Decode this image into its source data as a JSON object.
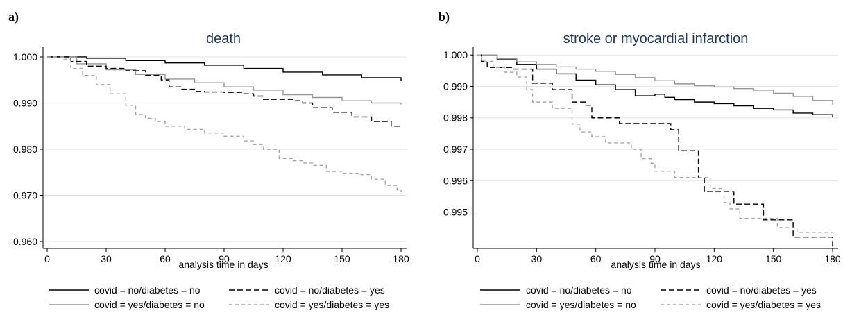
{
  "chart_data": [
    {
      "type": "line",
      "panel_label": "a)",
      "title": "death",
      "xlabel": "analysis time in days",
      "ylabel": "",
      "xlim": [
        0,
        180
      ],
      "ylim": [
        0.9585,
        1.0015
      ],
      "xticks": [
        0,
        30,
        60,
        90,
        120,
        150,
        180
      ],
      "yticks": [
        1.0,
        0.99,
        0.98,
        0.97,
        0.96
      ],
      "ytick_labels": [
        "1.000",
        "0.990",
        "0.980",
        "0.970",
        "0.960"
      ],
      "grid": true,
      "legend_position": "bottom",
      "series": [
        {
          "name": "covid = no/diabetes = no",
          "color": "#000000",
          "dash": "solid",
          "points": [
            [
              0,
              1.0
            ],
            [
              8,
              1.0
            ],
            [
              20,
              0.9997
            ],
            [
              40,
              0.9992
            ],
            [
              60,
              0.9987
            ],
            [
              80,
              0.9982
            ],
            [
              100,
              0.9975
            ],
            [
              120,
              0.9967
            ],
            [
              140,
              0.9961
            ],
            [
              160,
              0.9955
            ],
            [
              180,
              0.9948
            ]
          ]
        },
        {
          "name": "covid = yes/diabetes = no",
          "color": "#969696",
          "dash": "solid",
          "points": [
            [
              0,
              1.0
            ],
            [
              8,
              1.0
            ],
            [
              15,
              0.9985
            ],
            [
              30,
              0.9972
            ],
            [
              45,
              0.9962
            ],
            [
              60,
              0.9952
            ],
            [
              75,
              0.9944
            ],
            [
              90,
              0.9935
            ],
            [
              105,
              0.9928
            ],
            [
              120,
              0.9918
            ],
            [
              135,
              0.9912
            ],
            [
              150,
              0.9905
            ],
            [
              165,
              0.99
            ],
            [
              180,
              0.9897
            ]
          ]
        },
        {
          "name": "covid = no/diabetes = yes",
          "color": "#000000",
          "dash": "long",
          "points": [
            [
              0,
              1.0
            ],
            [
              8,
              1.0
            ],
            [
              12,
              0.999
            ],
            [
              20,
              0.998
            ],
            [
              30,
              0.9975
            ],
            [
              40,
              0.997
            ],
            [
              50,
              0.996
            ],
            [
              58,
              0.995
            ],
            [
              62,
              0.9935
            ],
            [
              68,
              0.993
            ],
            [
              75,
              0.9925
            ],
            [
              80,
              0.9924
            ],
            [
              90,
              0.9923
            ],
            [
              100,
              0.992
            ],
            [
              105,
              0.9915
            ],
            [
              110,
              0.9908
            ],
            [
              125,
              0.9905
            ],
            [
              130,
              0.99
            ],
            [
              135,
              0.989
            ],
            [
              145,
              0.988
            ],
            [
              155,
              0.987
            ],
            [
              165,
              0.986
            ],
            [
              175,
              0.985
            ],
            [
              180,
              0.9848
            ]
          ]
        },
        {
          "name": "covid = yes/diabetes = yes",
          "color": "#a6a6a6",
          "dash": "short",
          "points": [
            [
              0,
              1.0
            ],
            [
              8,
              0.9995
            ],
            [
              12,
              0.9975
            ],
            [
              18,
              0.996
            ],
            [
              25,
              0.994
            ],
            [
              32,
              0.992
            ],
            [
              40,
              0.9895
            ],
            [
              45,
              0.9875
            ],
            [
              50,
              0.9867
            ],
            [
              55,
              0.986
            ],
            [
              60,
              0.985
            ],
            [
              70,
              0.9843
            ],
            [
              80,
              0.9835
            ],
            [
              90,
              0.9828
            ],
            [
              100,
              0.9818
            ],
            [
              105,
              0.981
            ],
            [
              110,
              0.98
            ],
            [
              118,
              0.978
            ],
            [
              125,
              0.9775
            ],
            [
              130,
              0.977
            ],
            [
              135,
              0.9765
            ],
            [
              142,
              0.9752
            ],
            [
              150,
              0.9748
            ],
            [
              158,
              0.9745
            ],
            [
              165,
              0.9735
            ],
            [
              172,
              0.9722
            ],
            [
              178,
              0.9712
            ],
            [
              180,
              0.9708
            ]
          ]
        }
      ]
    },
    {
      "type": "line",
      "panel_label": "b)",
      "title": "stroke or myocardial infarction",
      "xlabel": "analysis time in days",
      "ylabel": "",
      "xlim": [
        0,
        180
      ],
      "ylim": [
        0.99384,
        1.00016
      ],
      "xticks": [
        0,
        30,
        60,
        90,
        120,
        150,
        180
      ],
      "yticks": [
        1.0,
        0.999,
        0.998,
        0.997,
        0.996,
        0.995
      ],
      "ytick_labels": [
        "1.000",
        "0.999",
        "0.998",
        "0.997",
        "0.996",
        "0.995"
      ],
      "grid": true,
      "legend_position": "bottom",
      "series": [
        {
          "name": "covid = no/diabetes = no",
          "color": "#000000",
          "dash": "solid",
          "points": [
            [
              0,
              1.0
            ],
            [
              10,
              0.99985
            ],
            [
              20,
              0.9997
            ],
            [
              30,
              0.99955
            ],
            [
              40,
              0.9994
            ],
            [
              50,
              0.9992
            ],
            [
              60,
              0.99905
            ],
            [
              70,
              0.9989
            ],
            [
              80,
              0.9987
            ],
            [
              90,
              0.99875
            ],
            [
              95,
              0.99865
            ],
            [
              100,
              0.99858
            ],
            [
              110,
              0.9985
            ],
            [
              120,
              0.99845
            ],
            [
              130,
              0.99838
            ],
            [
              140,
              0.9983
            ],
            [
              150,
              0.99825
            ],
            [
              160,
              0.99815
            ],
            [
              170,
              0.9981
            ],
            [
              180,
              0.99802
            ]
          ]
        },
        {
          "name": "covid = yes/diabetes = no",
          "color": "#969696",
          "dash": "solid",
          "points": [
            [
              0,
              1.0
            ],
            [
              10,
              0.99988
            ],
            [
              20,
              0.99978
            ],
            [
              30,
              0.9997
            ],
            [
              40,
              0.99962
            ],
            [
              50,
              0.99955
            ],
            [
              60,
              0.99948
            ],
            [
              70,
              0.99938
            ],
            [
              80,
              0.99928
            ],
            [
              90,
              0.99918
            ],
            [
              100,
              0.99908
            ],
            [
              110,
              0.99902
            ],
            [
              120,
              0.99898
            ],
            [
              130,
              0.99893
            ],
            [
              140,
              0.99888
            ],
            [
              150,
              0.99878
            ],
            [
              160,
              0.99868
            ],
            [
              170,
              0.99855
            ],
            [
              180,
              0.99842
            ]
          ]
        },
        {
          "name": "covid = no/diabetes = yes",
          "color": "#000000",
          "dash": "long",
          "points": [
            [
              0,
              1.0
            ],
            [
              2,
              0.9998
            ],
            [
              5,
              0.9996
            ],
            [
              15,
              0.9996
            ],
            [
              18,
              0.99955
            ],
            [
              25,
              0.99955
            ],
            [
              28,
              0.9991
            ],
            [
              35,
              0.9991
            ],
            [
              38,
              0.9989
            ],
            [
              45,
              0.9989
            ],
            [
              48,
              0.9985
            ],
            [
              55,
              0.9984
            ],
            [
              58,
              0.998
            ],
            [
              70,
              0.998
            ],
            [
              72,
              0.99782
            ],
            [
              95,
              0.99782
            ],
            [
              98,
              0.99762
            ],
            [
              100,
              0.99762
            ],
            [
              102,
              0.99695
            ],
            [
              110,
              0.99695
            ],
            [
              112,
              0.9961
            ],
            [
              115,
              0.99565
            ],
            [
              125,
              0.99565
            ],
            [
              130,
              0.99525
            ],
            [
              140,
              0.99525
            ],
            [
              145,
              0.99475
            ],
            [
              155,
              0.99475
            ],
            [
              160,
              0.9942
            ],
            [
              178,
              0.9942
            ],
            [
              180,
              0.99385
            ]
          ]
        },
        {
          "name": "covid = yes/diabetes = yes",
          "color": "#a6a6a6",
          "dash": "short",
          "points": [
            [
              0,
              1.0
            ],
            [
              2,
              0.9998
            ],
            [
              8,
              0.9996
            ],
            [
              14,
              0.99945
            ],
            [
              20,
              0.9993
            ],
            [
              25,
              0.9989
            ],
            [
              28,
              0.9985
            ],
            [
              32,
              0.9985
            ],
            [
              38,
              0.9983
            ],
            [
              45,
              0.9983
            ],
            [
              48,
              0.9978
            ],
            [
              52,
              0.99755
            ],
            [
              55,
              0.99755
            ],
            [
              58,
              0.9974
            ],
            [
              62,
              0.9974
            ],
            [
              65,
              0.9972
            ],
            [
              75,
              0.9972
            ],
            [
              78,
              0.997
            ],
            [
              80,
              0.997
            ],
            [
              83,
              0.9967
            ],
            [
              88,
              0.99655
            ],
            [
              90,
              0.9963
            ],
            [
              98,
              0.9963
            ],
            [
              100,
              0.9961
            ],
            [
              115,
              0.9961
            ],
            [
              118,
              0.99575
            ],
            [
              125,
              0.9953
            ],
            [
              128,
              0.9951
            ],
            [
              133,
              0.9948
            ],
            [
              148,
              0.9948
            ],
            [
              152,
              0.9945
            ],
            [
              158,
              0.9945
            ],
            [
              162,
              0.99435
            ],
            [
              180,
              0.99435
            ]
          ]
        }
      ]
    }
  ]
}
